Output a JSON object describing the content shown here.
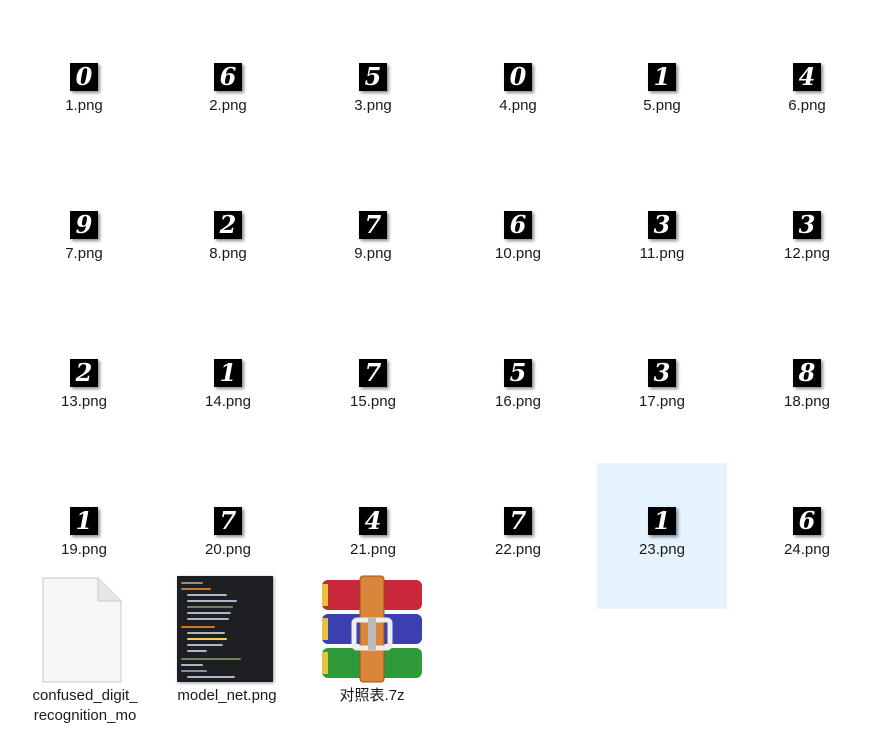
{
  "files": [
    {
      "name": "1.png",
      "digit": "0"
    },
    {
      "name": "2.png",
      "digit": "6"
    },
    {
      "name": "3.png",
      "digit": "5"
    },
    {
      "name": "4.png",
      "digit": "0"
    },
    {
      "name": "5.png",
      "digit": "1"
    },
    {
      "name": "6.png",
      "digit": "4"
    },
    {
      "name": "7.png",
      "digit": "9"
    },
    {
      "name": "8.png",
      "digit": "2"
    },
    {
      "name": "9.png",
      "digit": "7"
    },
    {
      "name": "10.png",
      "digit": "6"
    },
    {
      "name": "11.png",
      "digit": "3"
    },
    {
      "name": "12.png",
      "digit": "3"
    },
    {
      "name": "13.png",
      "digit": "2"
    },
    {
      "name": "14.png",
      "digit": "1"
    },
    {
      "name": "15.png",
      "digit": "7"
    },
    {
      "name": "16.png",
      "digit": "5"
    },
    {
      "name": "17.png",
      "digit": "3"
    },
    {
      "name": "18.png",
      "digit": "8"
    },
    {
      "name": "19.png",
      "digit": "1"
    },
    {
      "name": "20.png",
      "digit": "7"
    },
    {
      "name": "21.png",
      "digit": "4"
    },
    {
      "name": "22.png",
      "digit": "7"
    },
    {
      "name": "23.png",
      "digit": "1",
      "selected": true
    },
    {
      "name": "24.png",
      "digit": "6"
    }
  ],
  "extra_files": {
    "model_file": {
      "name": "confused_digit_\nrecognition_mo"
    },
    "code_image": {
      "name": "model_net.png"
    },
    "archive": {
      "name": "对照表.7z"
    }
  },
  "colors": {
    "selection": "#e5f3ff",
    "thumb_bg": "#000000",
    "code_bg": "#1e1f22",
    "rar_red": "#c8283a",
    "rar_blue": "#3b3fb0",
    "rar_green": "#2f9a3a",
    "rar_belt": "#d9863a"
  }
}
